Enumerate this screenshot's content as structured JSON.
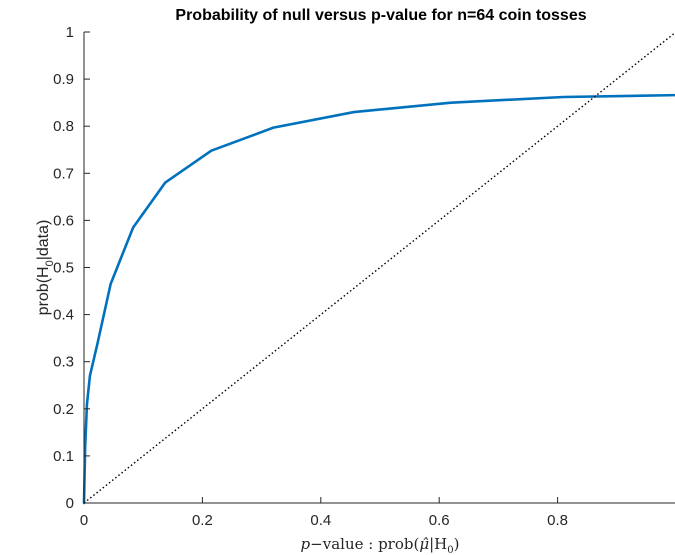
{
  "chart_data": {
    "type": "line",
    "title": "Probability of null versus p-value for n=64 coin tosses",
    "xlabel": {
      "prefix": "p",
      "middle": "−value : prob(",
      "mu_hat": "μ̂",
      "bar": "|H",
      "sub": "0",
      "close": ")"
    },
    "ylabel": {
      "prefix": "prob(H",
      "sub": "0",
      "suffix": "|data)"
    },
    "xlim": [
      0,
      1
    ],
    "ylim": [
      0,
      1
    ],
    "xticks": [
      0,
      0.2,
      0.4,
      0.6,
      0.8
    ],
    "xtick_labels": [
      "0",
      "0.2",
      "0.4",
      "0.6",
      "0.8"
    ],
    "yticks": [
      0,
      0.1,
      0.2,
      0.3,
      0.4,
      0.5,
      0.6,
      0.7,
      0.8,
      0.9,
      1
    ],
    "ytick_labels": [
      "0",
      "0.1",
      "0.2",
      "0.3",
      "0.4",
      "0.5",
      "0.6",
      "0.7",
      "0.8",
      "0.9",
      "1"
    ],
    "grid": false,
    "series": [
      {
        "color": "#0072BD",
        "style": "solid",
        "x": [
          0,
          0.002,
          0.005,
          0.01,
          0.023,
          0.045,
          0.083,
          0.137,
          0.215,
          0.32,
          0.456,
          0.62,
          0.81,
          1.0
        ],
        "y": [
          0,
          0.12,
          0.21,
          0.27,
          0.34,
          0.465,
          0.585,
          0.68,
          0.748,
          0.797,
          0.83,
          0.85,
          0.862,
          0.866
        ]
      },
      {
        "color": "#000000",
        "style": "dotted",
        "x": [
          0,
          1
        ],
        "y": [
          0,
          1
        ]
      }
    ]
  }
}
